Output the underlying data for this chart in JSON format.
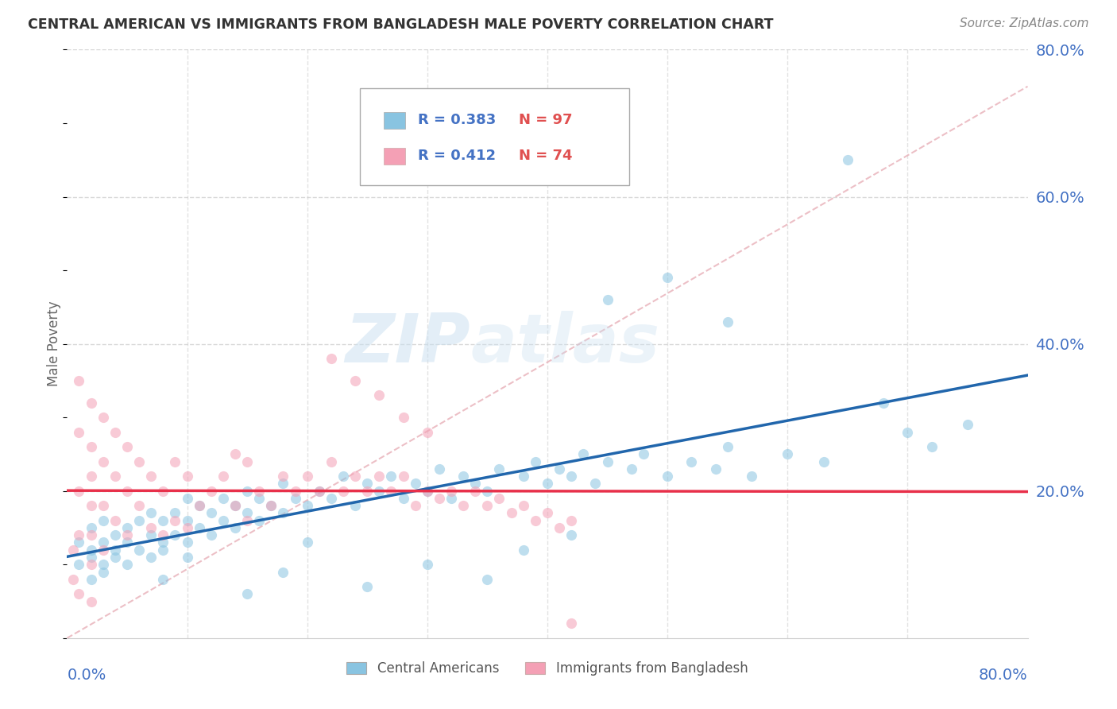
{
  "title": "CENTRAL AMERICAN VS IMMIGRANTS FROM BANGLADESH MALE POVERTY CORRELATION CHART",
  "source": "Source: ZipAtlas.com",
  "ylabel": "Male Poverty",
  "xlim": [
    0.0,
    0.8
  ],
  "ylim": [
    0.0,
    0.8
  ],
  "blue_color": "#89c4e1",
  "pink_color": "#f4a0b5",
  "blue_line_color": "#2166ac",
  "pink_line_color": "#e8304a",
  "dashed_line_color": "#d4a0a0",
  "background_color": "#ffffff",
  "grid_color": "#d0d0d0",
  "watermark": "ZIPatlas",
  "ca_x": [
    0.01,
    0.01,
    0.02,
    0.02,
    0.02,
    0.02,
    0.03,
    0.03,
    0.03,
    0.03,
    0.04,
    0.04,
    0.04,
    0.05,
    0.05,
    0.05,
    0.06,
    0.06,
    0.07,
    0.07,
    0.07,
    0.08,
    0.08,
    0.08,
    0.09,
    0.09,
    0.1,
    0.1,
    0.1,
    0.11,
    0.11,
    0.12,
    0.12,
    0.13,
    0.13,
    0.14,
    0.14,
    0.15,
    0.15,
    0.16,
    0.16,
    0.17,
    0.18,
    0.18,
    0.19,
    0.2,
    0.21,
    0.22,
    0.23,
    0.24,
    0.25,
    0.26,
    0.27,
    0.28,
    0.29,
    0.3,
    0.31,
    0.32,
    0.33,
    0.34,
    0.35,
    0.36,
    0.38,
    0.39,
    0.4,
    0.41,
    0.42,
    0.43,
    0.44,
    0.45,
    0.47,
    0.48,
    0.5,
    0.52,
    0.54,
    0.55,
    0.57,
    0.6,
    0.63,
    0.65,
    0.68,
    0.7,
    0.72,
    0.75,
    0.45,
    0.5,
    0.55,
    0.42,
    0.38,
    0.35,
    0.3,
    0.25,
    0.2,
    0.18,
    0.15,
    0.1,
    0.08
  ],
  "ca_y": [
    0.1,
    0.13,
    0.08,
    0.12,
    0.15,
    0.11,
    0.09,
    0.13,
    0.16,
    0.1,
    0.11,
    0.14,
    0.12,
    0.1,
    0.15,
    0.13,
    0.12,
    0.16,
    0.11,
    0.14,
    0.17,
    0.13,
    0.16,
    0.12,
    0.14,
    0.17,
    0.13,
    0.16,
    0.19,
    0.15,
    0.18,
    0.14,
    0.17,
    0.16,
    0.19,
    0.15,
    0.18,
    0.17,
    0.2,
    0.16,
    0.19,
    0.18,
    0.17,
    0.21,
    0.19,
    0.18,
    0.2,
    0.19,
    0.22,
    0.18,
    0.21,
    0.2,
    0.22,
    0.19,
    0.21,
    0.2,
    0.23,
    0.19,
    0.22,
    0.21,
    0.2,
    0.23,
    0.22,
    0.24,
    0.21,
    0.23,
    0.22,
    0.25,
    0.21,
    0.24,
    0.23,
    0.25,
    0.22,
    0.24,
    0.23,
    0.26,
    0.22,
    0.25,
    0.24,
    0.65,
    0.32,
    0.28,
    0.26,
    0.29,
    0.46,
    0.49,
    0.43,
    0.14,
    0.12,
    0.08,
    0.1,
    0.07,
    0.13,
    0.09,
    0.06,
    0.11,
    0.08
  ],
  "bd_x": [
    0.005,
    0.005,
    0.01,
    0.01,
    0.01,
    0.01,
    0.01,
    0.02,
    0.02,
    0.02,
    0.02,
    0.02,
    0.02,
    0.02,
    0.03,
    0.03,
    0.03,
    0.03,
    0.04,
    0.04,
    0.04,
    0.05,
    0.05,
    0.05,
    0.06,
    0.06,
    0.07,
    0.07,
    0.08,
    0.08,
    0.09,
    0.09,
    0.1,
    0.1,
    0.11,
    0.12,
    0.13,
    0.14,
    0.14,
    0.15,
    0.15,
    0.16,
    0.17,
    0.18,
    0.19,
    0.2,
    0.21,
    0.22,
    0.23,
    0.24,
    0.25,
    0.26,
    0.27,
    0.28,
    0.29,
    0.3,
    0.31,
    0.32,
    0.33,
    0.34,
    0.35,
    0.36,
    0.37,
    0.38,
    0.39,
    0.4,
    0.41,
    0.42,
    0.42,
    0.22,
    0.24,
    0.26,
    0.28,
    0.3
  ],
  "bd_y": [
    0.12,
    0.08,
    0.35,
    0.28,
    0.2,
    0.14,
    0.06,
    0.32,
    0.26,
    0.22,
    0.18,
    0.14,
    0.1,
    0.05,
    0.3,
    0.24,
    0.18,
    0.12,
    0.28,
    0.22,
    0.16,
    0.26,
    0.2,
    0.14,
    0.24,
    0.18,
    0.22,
    0.15,
    0.2,
    0.14,
    0.24,
    0.16,
    0.22,
    0.15,
    0.18,
    0.2,
    0.22,
    0.25,
    0.18,
    0.24,
    0.16,
    0.2,
    0.18,
    0.22,
    0.2,
    0.22,
    0.2,
    0.24,
    0.2,
    0.22,
    0.2,
    0.22,
    0.2,
    0.22,
    0.18,
    0.2,
    0.19,
    0.2,
    0.18,
    0.2,
    0.18,
    0.19,
    0.17,
    0.18,
    0.16,
    0.17,
    0.15,
    0.16,
    0.02,
    0.38,
    0.35,
    0.33,
    0.3,
    0.28
  ]
}
